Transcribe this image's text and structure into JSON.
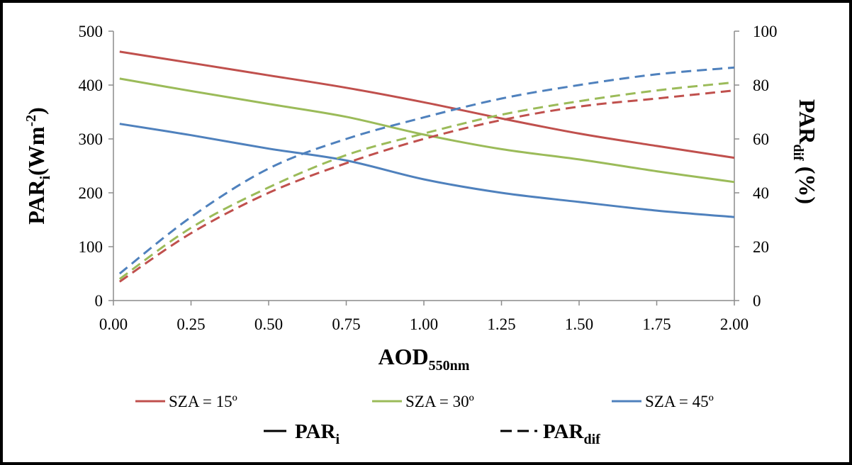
{
  "chart_data": {
    "type": "line",
    "xlabel": {
      "main": "AOD",
      "sub": "550nm"
    },
    "ylabel_left": {
      "main": "PAR",
      "sub": "i",
      "rest": "(Wm",
      "sup": "-2",
      "close": ")"
    },
    "ylabel_right": {
      "main": "PAR",
      "sub": "dif",
      "rest": " (%)"
    },
    "xlim": [
      0,
      2
    ],
    "ylim_left": [
      0,
      500
    ],
    "ylim_right": [
      0,
      100
    ],
    "x_ticks": [
      "0.00",
      "0.25",
      "0.50",
      "0.75",
      "1.00",
      "1.25",
      "1.50",
      "1.75",
      "2.00"
    ],
    "y_left_ticks": [
      "0",
      "100",
      "200",
      "300",
      "400",
      "500"
    ],
    "y_right_ticks": [
      "0",
      "20",
      "40",
      "60",
      "80",
      "100"
    ],
    "x_tick_values": [
      0,
      0.25,
      0.5,
      0.75,
      1.0,
      1.25,
      1.5,
      1.75,
      2.0
    ],
    "y_left_tick_values": [
      0,
      100,
      200,
      300,
      400,
      500
    ],
    "y_right_tick_values": [
      0,
      20,
      40,
      60,
      80,
      100
    ],
    "grid": false,
    "legend_position": "bottom",
    "legend": {
      "colors": [
        {
          "label": "SZA = 15º",
          "color": "#c0504d"
        },
        {
          "label": "SZA = 30º",
          "color": "#9bbb59"
        },
        {
          "label": "SZA = 45º",
          "color": "#4f81bd"
        }
      ],
      "styles": [
        {
          "main": "PAR",
          "sub": "i",
          "dash": "solid"
        },
        {
          "main": "PAR",
          "sub": "dif",
          "dash": "dashed"
        }
      ]
    },
    "x": [
      0.02,
      0.25,
      0.5,
      0.75,
      1.0,
      1.25,
      1.5,
      1.75,
      2.0
    ],
    "series": [
      {
        "group": "SZA = 15º",
        "quantity": "PARi",
        "axis": "left",
        "color": "#c0504d",
        "dash": "solid",
        "values": [
          462,
          441,
          418,
          395,
          368,
          338,
          310,
          287,
          265
        ]
      },
      {
        "group": "SZA = 30º",
        "quantity": "PARi",
        "axis": "left",
        "color": "#9bbb59",
        "dash": "solid",
        "values": [
          412,
          389,
          365,
          341,
          308,
          281,
          262,
          240,
          220
        ]
      },
      {
        "group": "SZA = 45º",
        "quantity": "PARi",
        "axis": "left",
        "color": "#4f81bd",
        "dash": "solid",
        "values": [
          328,
          307,
          282,
          260,
          225,
          200,
          183,
          167,
          155
        ]
      },
      {
        "group": "SZA = 15º",
        "quantity": "PARdif",
        "axis": "right",
        "color": "#c0504d",
        "dash": "dashed",
        "values": [
          7,
          25,
          40,
          51,
          60,
          67,
          72,
          75,
          78
        ]
      },
      {
        "group": "SZA = 30º",
        "quantity": "PARdif",
        "axis": "right",
        "color": "#9bbb59",
        "dash": "dashed",
        "values": [
          8,
          27,
          42,
          54,
          62,
          69,
          74,
          78,
          81
        ]
      },
      {
        "group": "SZA = 45º",
        "quantity": "PARdif",
        "axis": "right",
        "color": "#4f81bd",
        "dash": "dashed",
        "values": [
          10,
          31,
          49,
          60,
          68,
          75,
          80,
          84,
          86.5
        ]
      }
    ]
  }
}
